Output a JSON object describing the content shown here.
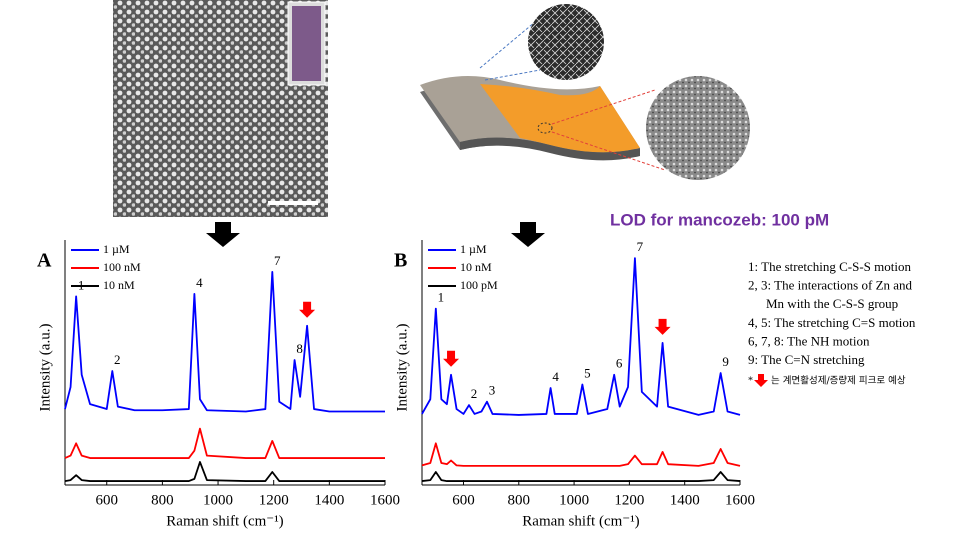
{
  "chart_data": [
    {
      "type": "line",
      "label": "A",
      "x_label": "Raman shift (cm⁻¹)",
      "y_label": "Intensity (a.u.)",
      "x": [
        450,
        470,
        490,
        510,
        540,
        600,
        620,
        640,
        700,
        800,
        895,
        915,
        935,
        960,
        1100,
        1170,
        1195,
        1220,
        1260,
        1275,
        1295,
        1320,
        1345,
        1400,
        1500,
        1600
      ],
      "series": [
        {
          "name": "1 µM",
          "color": "#0000ff",
          "values": [
            31,
            40,
            77,
            45,
            33,
            31,
            46.5,
            32,
            30.5,
            30.5,
            31,
            78,
            35,
            30.5,
            30,
            31,
            87,
            34,
            31,
            51,
            36,
            65,
            31,
            30,
            30,
            30
          ]
        },
        {
          "name": "100 nM",
          "color": "#ff0000",
          "values": [
            11,
            12,
            17,
            12,
            11,
            11,
            11,
            11,
            11,
            11,
            11,
            14,
            23,
            12,
            11,
            11,
            18,
            11,
            11,
            11,
            11,
            11,
            11,
            11,
            11,
            11
          ]
        },
        {
          "name": "10 nM",
          "color": "#000000",
          "values": [
            1.6,
            2,
            4,
            2,
            1.6,
            1.6,
            1.6,
            1.6,
            1.6,
            1.6,
            1.6,
            2.5,
            9.4,
            2,
            1.6,
            1.6,
            5.3,
            1.6,
            1.6,
            1.6,
            1.6,
            1.6,
            1.6,
            1.6,
            1.6,
            1.6
          ]
        }
      ],
      "xlim": [
        450,
        1600
      ],
      "xticks": [
        600,
        800,
        1000,
        1200,
        1400,
        1600
      ],
      "ylim": [
        0,
        100
      ],
      "annotations": [
        {
          "text": "1",
          "x": 490
        },
        {
          "text": "2",
          "x": 620
        },
        {
          "text": "4",
          "x": 915
        },
        {
          "text": "7",
          "x": 1195
        },
        {
          "text": "8",
          "x": 1275
        }
      ],
      "arrow_x": [
        1320
      ]
    },
    {
      "type": "line",
      "label": "B",
      "x_label": "Raman shift (cm⁻¹)",
      "y_label": "Intensity (a.u.)",
      "x": [
        450,
        480,
        500,
        520,
        540,
        555,
        575,
        600,
        620,
        640,
        665,
        685,
        705,
        800,
        900,
        915,
        930,
        1010,
        1030,
        1050,
        1120,
        1145,
        1165,
        1195,
        1220,
        1245,
        1300,
        1320,
        1340,
        1450,
        1505,
        1530,
        1555,
        1600
      ],
      "series": [
        {
          "name": "1 µM",
          "color": "#0000ff",
          "values": [
            29,
            35,
            72,
            35,
            33,
            45,
            31,
            29,
            32.6,
            29,
            30,
            34,
            29,
            28.6,
            29,
            39.6,
            29,
            29,
            41,
            29,
            31,
            45,
            32,
            40,
            92.6,
            38,
            32,
            58,
            32,
            28.6,
            30,
            45.7,
            30,
            28.6
          ]
        },
        {
          "name": "10 nM",
          "color": "#ff0000",
          "values": [
            8,
            9,
            17,
            9,
            8.5,
            10,
            8,
            7.8,
            7.8,
            7.8,
            7.8,
            7.8,
            7.8,
            7.8,
            7.8,
            7.8,
            7.8,
            7.8,
            7.8,
            7.8,
            7.8,
            7.8,
            7.8,
            8.5,
            12,
            8.5,
            8.5,
            13.5,
            8.5,
            7.8,
            9,
            14.7,
            9,
            7.8
          ]
        },
        {
          "name": "100 pM",
          "color": "#000000",
          "values": [
            1.6,
            2,
            5.3,
            2,
            1.6,
            1.6,
            1.6,
            1.6,
            1.6,
            1.6,
            1.6,
            1.6,
            1.6,
            1.6,
            1.6,
            1.6,
            1.6,
            1.6,
            1.6,
            1.6,
            1.6,
            1.6,
            1.6,
            1.6,
            1.6,
            1.6,
            1.6,
            1.6,
            1.6,
            1.6,
            2,
            5.3,
            2,
            1.6
          ]
        }
      ],
      "xlim": [
        450,
        1600
      ],
      "xticks": [
        600,
        800,
        1000,
        1200,
        1400,
        1600
      ],
      "ylim": [
        0,
        100
      ],
      "annotations": [
        {
          "text": "1",
          "x": 500
        },
        {
          "text": "2",
          "x": 620
        },
        {
          "text": "3",
          "x": 685
        },
        {
          "text": "4",
          "x": 915
        },
        {
          "text": "5",
          "x": 1030
        },
        {
          "text": "6",
          "x": 1145
        },
        {
          "text": "7",
          "x": 1220
        },
        {
          "text": "9",
          "x": 1530
        }
      ],
      "arrow_x": [
        555,
        1320
      ]
    }
  ],
  "lod": "LOD for mancozeb: 100 pM",
  "notes": [
    "1: The stretching C-S-S motion",
    "2, 3: The interactions of Zn and",
    "Mn with the C-S-S group",
    "4, 5: The stretching C=S motion",
    "6, 7, 8: The NH motion",
    "9: The C=N stretching"
  ],
  "footnote_mark": "*",
  "footnote": "는 계면활성제/증량제 피크로 예상"
}
